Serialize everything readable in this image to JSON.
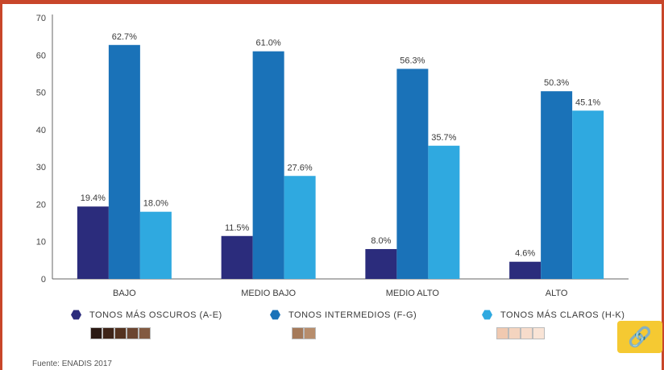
{
  "chart_data": {
    "type": "bar",
    "categories": [
      "BAJO",
      "MEDIO BAJO",
      "MEDIO ALTO",
      "ALTO"
    ],
    "series": [
      {
        "name": "TONOS MÁS OSCUROS (A-E)",
        "values": [
          19.4,
          11.5,
          8.0,
          4.6
        ],
        "labels": [
          "19.4%",
          "11.5%",
          "8.0%",
          "4.6%"
        ],
        "color": "#2b2c7c"
      },
      {
        "name": "TONOS INTERMEDIOS (F-G)",
        "values": [
          62.7,
          61.0,
          56.3,
          50.3
        ],
        "labels": [
          "62.7%",
          "61.0%",
          "56.3%",
          "50.3%"
        ],
        "color": "#1a72b8"
      },
      {
        "name": "TONOS MÁS CLAROS (H-K)",
        "values": [
          18.0,
          27.6,
          35.7,
          45.1
        ],
        "labels": [
          "18.0%",
          "27.6%",
          "35.7%",
          "45.1%"
        ],
        "color": "#2fa9e0"
      }
    ],
    "yticks": [
      "0",
      "10",
      "20",
      "30",
      "40",
      "50",
      "60",
      "70"
    ],
    "ylim": [
      0,
      70
    ],
    "grid": false,
    "legend_position": "bottom"
  },
  "legend": {
    "dark_label": "TONOS MÁS OSCUROS (A-E)",
    "mid_label": "TONOS INTERMEDIOS (F-G)",
    "light_label": "TONOS MÁS CLAROS (H-K)"
  },
  "swatches": {
    "dark": [
      "#2b1a14",
      "#3e2418",
      "#54321f",
      "#6b4530",
      "#825a41"
    ],
    "mid": [
      "#a57a5a",
      "#b78d6c"
    ],
    "light": [
      "#f0c9b0",
      "#f4d4bf",
      "#f7dccb",
      "#f9e4d6"
    ]
  },
  "source": "Fuente: ENADIS 2017",
  "link_icon": "link-icon",
  "colors": {
    "frame": "#c8462a",
    "link_button": "#f5c932"
  }
}
